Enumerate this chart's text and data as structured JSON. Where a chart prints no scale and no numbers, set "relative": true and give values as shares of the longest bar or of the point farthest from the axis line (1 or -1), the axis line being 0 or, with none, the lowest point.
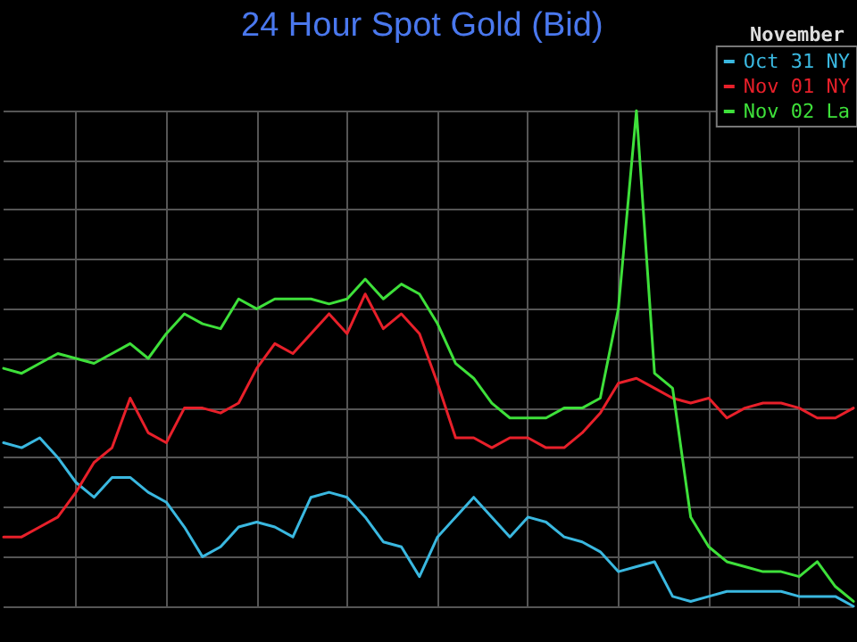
{
  "chart_data": {
    "type": "line",
    "title": "24 Hour Spot Gold (Bid)",
    "legend_title": "November",
    "relative": true,
    "grid": true,
    "legend": "top right",
    "tick_labels": false,
    "marker": "none",
    "line_style": "solid",
    "categories": [
      null,
      null,
      null,
      null,
      null,
      null,
      null,
      null,
      null,
      null,
      null,
      null,
      null,
      null,
      null,
      null,
      null,
      null,
      null,
      null,
      null,
      null,
      null,
      null,
      null,
      null,
      null,
      null,
      null,
      null,
      null,
      null,
      null,
      null,
      null,
      null,
      null,
      null,
      null,
      null,
      null,
      null,
      null,
      null,
      null,
      null,
      null,
      null
    ],
    "series": [
      {
        "name": "Oct 31 NY",
        "color": "#3ab8e0",
        "values": [
          0.33,
          0.32,
          0.34,
          0.3,
          0.25,
          0.22,
          0.26,
          0.26,
          0.23,
          0.21,
          0.16,
          0.1,
          0.12,
          0.16,
          0.17,
          0.16,
          0.14,
          0.22,
          0.23,
          0.22,
          0.18,
          0.13,
          0.12,
          0.06,
          0.14,
          0.18,
          0.22,
          0.18,
          0.14,
          0.18,
          0.17,
          0.14,
          0.13,
          0.11,
          0.07,
          0.08,
          0.09,
          0.02,
          0.01,
          0.02,
          0.03,
          0.03,
          0.03,
          0.03,
          0.02,
          0.02,
          0.02,
          0
        ]
      },
      {
        "name": "Nov 01 NY",
        "color": "#e8202a",
        "values": [
          0.14,
          0.14,
          0.16,
          0.18,
          0.23,
          0.29,
          0.32,
          0.42,
          0.35,
          0.33,
          0.4,
          0.4,
          0.39,
          0.41,
          0.48,
          0.53,
          0.51,
          0.55,
          0.59,
          0.55,
          0.63,
          0.56,
          0.59,
          0.55,
          0.45,
          0.34,
          0.34,
          0.32,
          0.34,
          0.34,
          0.32,
          0.32,
          0.35,
          0.39,
          0.45,
          0.46,
          0.44,
          0.42,
          0.41,
          0.42,
          0.38,
          0.4,
          0.41,
          0.41,
          0.4,
          0.38,
          0.38,
          0.4
        ]
      },
      {
        "name": "Nov 02 La",
        "color": "#3ee03a",
        "values": [
          0.48,
          0.47,
          0.49,
          0.51,
          0.5,
          0.49,
          0.51,
          0.53,
          0.5,
          0.55,
          0.59,
          0.57,
          0.56,
          0.62,
          0.6,
          0.62,
          0.62,
          0.62,
          0.61,
          0.62,
          0.66,
          0.62,
          0.65,
          0.63,
          0.57,
          0.49,
          0.46,
          0.41,
          0.38,
          0.38,
          0.38,
          0.4,
          0.4,
          0.42,
          0.6,
          1.0,
          0.47,
          0.44,
          0.18,
          0.12,
          0.09,
          0.08,
          0.07,
          0.07,
          0.06,
          0.09,
          0.04,
          0.01
        ]
      }
    ]
  }
}
